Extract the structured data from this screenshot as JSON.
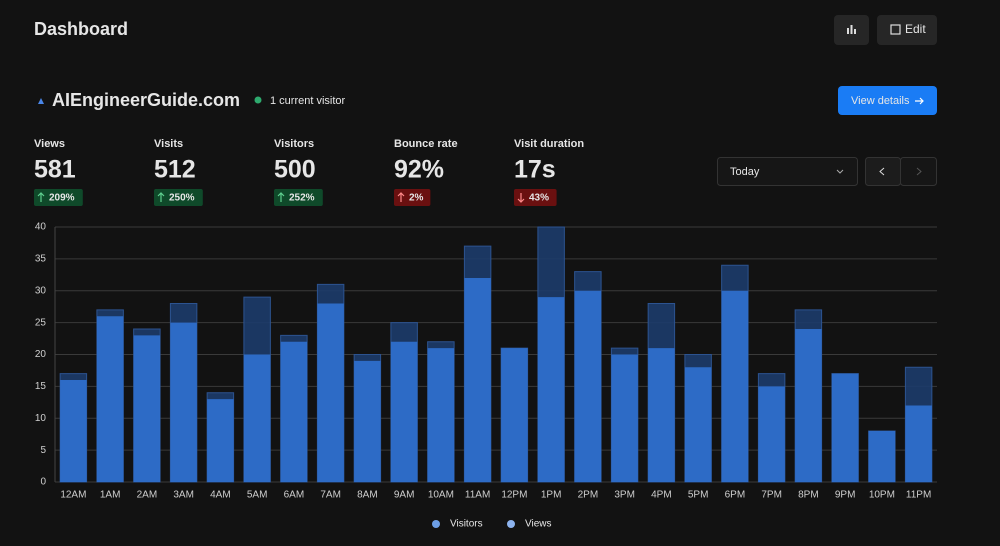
{
  "header": {
    "title": "Dashboard",
    "edit": "Edit"
  },
  "site": {
    "name": "AIEngineerGuide.com",
    "live": "1 current visitor",
    "details": "View details"
  },
  "stats": [
    {
      "label": "Views",
      "value": "581",
      "change": "209%",
      "trend": "up"
    },
    {
      "label": "Visits",
      "value": "512",
      "change": "250%",
      "trend": "up"
    },
    {
      "label": "Visitors",
      "value": "500",
      "change": "252%",
      "trend": "up"
    },
    {
      "label": "Bounce rate",
      "value": "92%",
      "change": "2%",
      "trend": "up-bad"
    },
    {
      "label": "Visit duration",
      "value": "17s",
      "change": "43%",
      "trend": "down"
    }
  ],
  "range": "Today",
  "chart_data": {
    "type": "bar",
    "categories": [
      "12AM",
      "1AM",
      "2AM",
      "3AM",
      "4AM",
      "5AM",
      "6AM",
      "7AM",
      "8AM",
      "9AM",
      "10AM",
      "11AM",
      "12PM",
      "1PM",
      "2PM",
      "3PM",
      "4PM",
      "5PM",
      "6PM",
      "7PM",
      "8PM",
      "9PM",
      "10PM",
      "11PM"
    ],
    "series": [
      {
        "name": "Visitors",
        "color": "#2e6ecb",
        "values": [
          16,
          26,
          23,
          25,
          13,
          20,
          22,
          28,
          19,
          22,
          21,
          32,
          21,
          29,
          30,
          20,
          21,
          18,
          30,
          15,
          24,
          17,
          8,
          12
        ]
      },
      {
        "name": "Views",
        "color": "#1d3c6b",
        "values": [
          17,
          27,
          24,
          28,
          14,
          29,
          23,
          31,
          20,
          25,
          22,
          37,
          21,
          40,
          33,
          21,
          28,
          20,
          34,
          17,
          27,
          17,
          8,
          18
        ]
      }
    ],
    "ylim": [
      0,
      40
    ],
    "yticks": [
      0,
      5,
      10,
      15,
      20,
      25,
      30,
      35,
      40
    ],
    "grid": true
  }
}
